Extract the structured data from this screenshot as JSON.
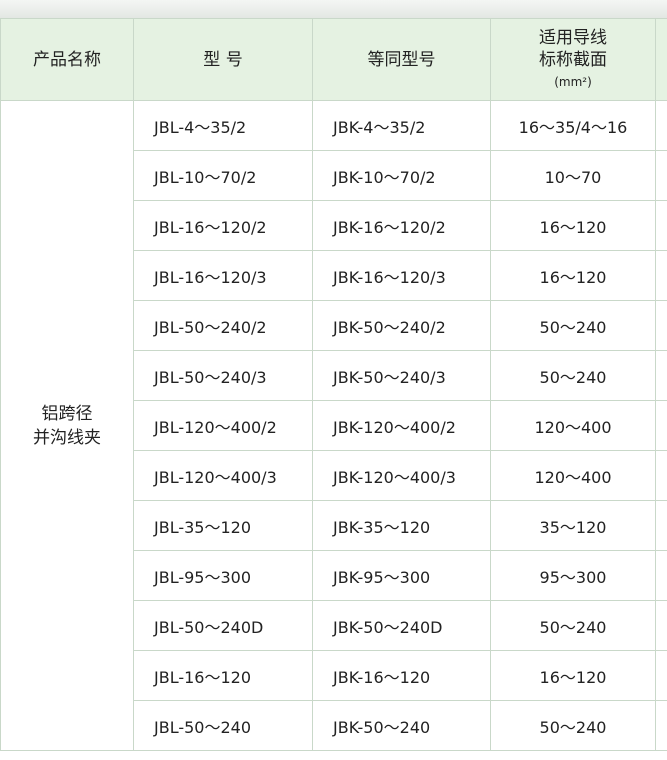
{
  "header": {
    "product_name": "产品名称",
    "model": "型 号",
    "equivalent_model": "等同型号",
    "section": [
      "适用导线",
      "标称截面",
      "(mm²)"
    ]
  },
  "product": [
    "铝跨径",
    "并沟线夹"
  ],
  "rows": [
    [
      "JBL-4～35/2",
      "JBK-4～35/2",
      "16～35/4～16"
    ],
    [
      "JBL-10～70/2",
      "JBK-10～70/2",
      "10～70"
    ],
    [
      "JBL-16～120/2",
      "JBK-16～120/2",
      "16～120"
    ],
    [
      "JBL-16～120/3",
      "JBK-16～120/3",
      "16～120"
    ],
    [
      "JBL-50～240/2",
      "JBK-50～240/2",
      "50～240"
    ],
    [
      "JBL-50～240/3",
      "JBK-50～240/3",
      "50～240"
    ],
    [
      "JBL-120～400/2",
      "JBK-120～400/2",
      "120～400"
    ],
    [
      "JBL-120～400/3",
      "JBK-120～400/3",
      "120～400"
    ],
    [
      "JBL-35～120",
      "JBK-35～120",
      "35～120"
    ],
    [
      "JBL-95～300",
      "JBK-95～300",
      "95～300"
    ],
    [
      "JBL-50～240D",
      "JBK-50～240D",
      "50～240"
    ],
    [
      "JBL-16～120",
      "JBK-16～120",
      "16～120"
    ],
    [
      "JBL-50～240",
      "JBK-50～240",
      "50～240"
    ]
  ]
}
